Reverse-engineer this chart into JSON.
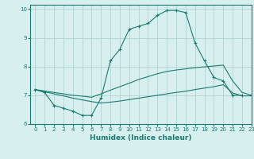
{
  "xlabel": "Humidex (Indice chaleur)",
  "bg_color": "#d8eff0",
  "grid_color": "#aacccc",
  "line_color": "#1a7a6e",
  "xlim": [
    -0.5,
    23
  ],
  "ylim": [
    6,
    10.15
  ],
  "yticks": [
    6,
    7,
    8,
    9,
    10
  ],
  "xticks": [
    0,
    1,
    2,
    3,
    4,
    5,
    6,
    7,
    8,
    9,
    10,
    11,
    12,
    13,
    14,
    15,
    16,
    17,
    18,
    19,
    20,
    21,
    22,
    23
  ],
  "series": [
    {
      "x": [
        0,
        1,
        2,
        3,
        4,
        5,
        6,
        7,
        8,
        9,
        10,
        11,
        12,
        13,
        14,
        15,
        16,
        17,
        18,
        19,
        20,
        21,
        22
      ],
      "y": [
        7.2,
        7.1,
        6.65,
        6.55,
        6.45,
        6.3,
        6.3,
        6.9,
        8.2,
        8.6,
        9.3,
        9.4,
        9.5,
        9.78,
        9.95,
        9.95,
        9.88,
        8.82,
        8.2,
        7.62,
        7.5,
        7.0,
        7.0
      ],
      "marker": true
    },
    {
      "x": [
        0,
        2,
        3,
        4,
        5,
        6,
        7,
        8,
        9,
        10,
        11,
        12,
        13,
        14,
        15,
        16,
        17,
        18,
        19,
        20,
        21,
        22,
        23
      ],
      "y": [
        7.2,
        7.1,
        7.05,
        7.0,
        6.97,
        6.93,
        7.05,
        7.18,
        7.3,
        7.42,
        7.55,
        7.65,
        7.75,
        7.83,
        7.88,
        7.92,
        7.96,
        7.99,
        8.02,
        8.05,
        7.5,
        7.1,
        7.0
      ],
      "marker": false
    },
    {
      "x": [
        0,
        2,
        3,
        4,
        5,
        6,
        7,
        8,
        9,
        10,
        11,
        12,
        13,
        14,
        15,
        16,
        17,
        18,
        19,
        20,
        21,
        22,
        23
      ],
      "y": [
        7.2,
        7.05,
        6.98,
        6.9,
        6.84,
        6.78,
        6.73,
        6.76,
        6.8,
        6.85,
        6.9,
        6.95,
        7.0,
        7.05,
        7.1,
        7.14,
        7.2,
        7.25,
        7.3,
        7.37,
        7.08,
        6.98,
        6.98
      ],
      "marker": false
    }
  ]
}
